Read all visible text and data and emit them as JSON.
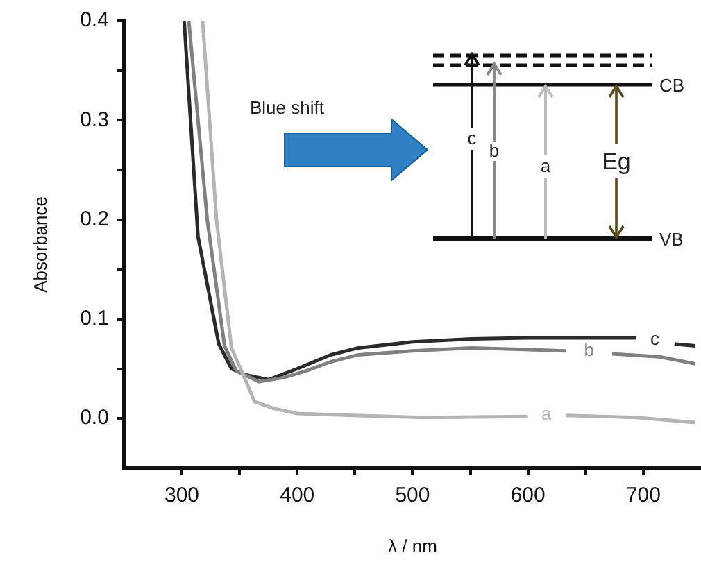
{
  "chart_data": {
    "type": "line",
    "xlabel": "λ / nm",
    "ylabel": "Absorbance",
    "xlim": [
      250,
      750
    ],
    "xticks": [
      300,
      {
        "value": 350,
        "label": null
      },
      400,
      {
        "value": 450,
        "label": null
      },
      500,
      {
        "value": 550,
        "label": null
      },
      600,
      {
        "value": 650,
        "label": null
      },
      700
    ],
    "ylim": [
      -0.05,
      0.4
    ],
    "yticks": [
      {
        "value": 0,
        "label": "0.0"
      },
      {
        "value": 0.05,
        "label": null
      },
      0.1,
      {
        "value": 0.15,
        "label": null
      },
      0.2,
      {
        "value": 0.25,
        "label": null
      },
      0.3,
      {
        "value": 0.35,
        "label": null
      },
      0.4
    ],
    "series": [
      {
        "name": "a",
        "color": "#b4b4b4",
        "x": [
          318,
          330,
          343,
          355,
          363,
          380,
          400,
          449,
          510,
          600,
          616,
          633,
          694,
          745
        ],
        "values": [
          0.4,
          0.2,
          0.071,
          0.039,
          0.017,
          0.01,
          0.005,
          0.003,
          0.001,
          0.002,
          null,
          0.003,
          0.001,
          -0.004
        ]
      },
      {
        "name": "b",
        "color": "#808080",
        "x": [
          306,
          322,
          337,
          347,
          367,
          388,
          408,
          429,
          453,
          500,
          551,
          633,
          653,
          673,
          714,
          745
        ],
        "values": [
          0.4,
          0.2,
          0.073,
          0.048,
          0.037,
          0.041,
          0.048,
          0.057,
          0.064,
          0.068,
          0.071,
          0.068,
          null,
          0.065,
          0.062,
          0.055
        ]
      },
      {
        "name": "c",
        "color": "#2a2a2a",
        "x": [
          302,
          314,
          332,
          343,
          355,
          375,
          400,
          429,
          453,
          500,
          551,
          600,
          694,
          710,
          727,
          745
        ],
        "values": [
          0.4,
          0.183,
          0.075,
          0.05,
          0.044,
          0.039,
          0.05,
          0.064,
          0.071,
          0.077,
          0.08,
          0.081,
          0.081,
          null,
          0.075,
          0.073
        ]
      }
    ],
    "line_style": "solid",
    "marker": "none",
    "legend": false,
    "annotations": [
      "Blue shift",
      "CB",
      "VB",
      "Eg",
      "c",
      "b",
      "a"
    ]
  }
}
